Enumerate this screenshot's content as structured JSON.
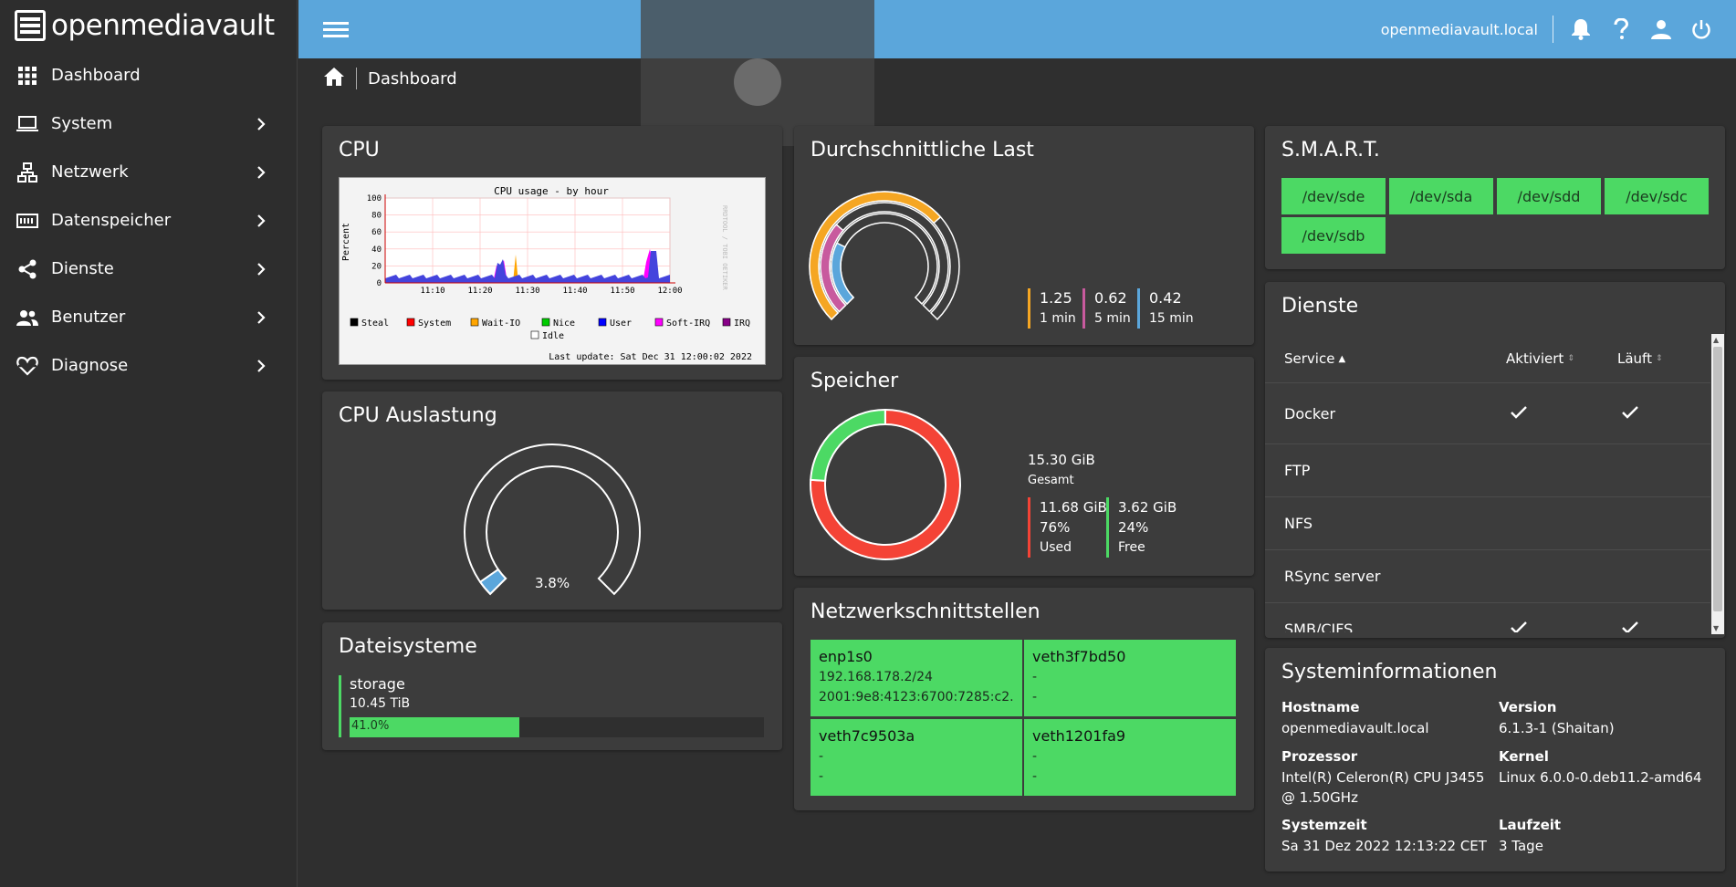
{
  "app": {
    "logo_text": "openmediavault"
  },
  "sidebar": {
    "items": [
      {
        "label": "Dashboard",
        "icon": "grid-icon",
        "chevron": false
      },
      {
        "label": "System",
        "icon": "laptop-icon",
        "chevron": true
      },
      {
        "label": "Netzwerk",
        "icon": "network-icon",
        "chevron": true
      },
      {
        "label": "Datenspeicher",
        "icon": "storage-icon",
        "chevron": true
      },
      {
        "label": "Dienste",
        "icon": "share-icon",
        "chevron": true
      },
      {
        "label": "Benutzer",
        "icon": "users-icon",
        "chevron": true
      },
      {
        "label": "Diagnose",
        "icon": "heartbeat-icon",
        "chevron": true
      }
    ]
  },
  "topbar": {
    "hostname": "openmediavault.local"
  },
  "breadcrumb": {
    "label": "Dashboard"
  },
  "cpu": {
    "title": "CPU",
    "graph": {
      "title": "CPU usage - by hour",
      "ylabel": "Percent",
      "yticks": [
        "100",
        "80",
        "60",
        "40",
        "20",
        "0"
      ],
      "xticks": [
        "11:10",
        "11:20",
        "11:30",
        "11:40",
        "11:50",
        "12:00"
      ],
      "legend": [
        "Steal",
        "System",
        "Wait-IO",
        "Nice",
        "User",
        "Soft-IRQ",
        "IRQ",
        "Idle"
      ],
      "legend_colors": [
        "#000000",
        "#ff0000",
        "#ffa500",
        "#00cc00",
        "#0000ff",
        "#ff00ff",
        "#880088",
        "#ffffff"
      ],
      "side_text": "RRDTOOL / TOBI OETIKER",
      "last_update": "Last update: Sat Dec 31 12:00:02 2022"
    }
  },
  "cpu_usage": {
    "title": "CPU Auslastung",
    "value_label": "3.8%",
    "value": 3.8
  },
  "filesystems": {
    "title": "Dateisysteme",
    "items": [
      {
        "name": "storage",
        "size": "10.45 TiB",
        "percent_label": "41.0%",
        "percent": 41.0
      }
    ]
  },
  "load": {
    "title": "Durchschnittliche Last",
    "values": [
      {
        "value": "1.25",
        "label": "1 min",
        "color": "#f5a623"
      },
      {
        "value": "0.62",
        "label": "5 min",
        "color": "#c85a9e"
      },
      {
        "value": "0.42",
        "label": "15 min",
        "color": "#5ba6db"
      }
    ]
  },
  "memory": {
    "title": "Speicher",
    "total": "15.30 GiB",
    "total_label": "Gesamt",
    "used": {
      "value": "11.68 GiB",
      "percent": "76%",
      "label": "Used",
      "color": "#f44336",
      "fraction": 0.76
    },
    "free": {
      "value": "3.62 GiB",
      "percent": "24%",
      "label": "Free",
      "color": "#4cd964",
      "fraction": 0.24
    }
  },
  "network": {
    "title": "Netzwerkschnittstellen",
    "interfaces": [
      {
        "name": "enp1s0",
        "line1": "192.168.178.2/24",
        "line2": "2001:9e8:4123:6700:7285:c2..."
      },
      {
        "name": "veth3f7bd50",
        "line1": "-",
        "line2": "-"
      },
      {
        "name": "veth7c9503a",
        "line1": "-",
        "line2": "-"
      },
      {
        "name": "veth1201fa9",
        "line1": "-",
        "line2": "-"
      }
    ]
  },
  "smart": {
    "title": "S.M.A.R.T.",
    "devices": [
      "/dev/sde",
      "/dev/sda",
      "/dev/sdd",
      "/dev/sdc",
      "/dev/sdb"
    ]
  },
  "services": {
    "title": "Dienste",
    "columns": {
      "service": "Service",
      "enabled": "Aktiviert",
      "running": "Läuft"
    },
    "rows": [
      {
        "name": "Docker",
        "enabled": true,
        "running": true
      },
      {
        "name": "FTP",
        "enabled": false,
        "running": false
      },
      {
        "name": "NFS",
        "enabled": false,
        "running": false
      },
      {
        "name": "RSync server",
        "enabled": false,
        "running": false
      },
      {
        "name": "SMB/CIFS",
        "enabled": true,
        "running": true
      }
    ]
  },
  "sysinfo": {
    "title": "Systeminformationen",
    "hostname_label": "Hostname",
    "hostname": "openmediavault.local",
    "version_label": "Version",
    "version": "6.1.3-1 (Shaitan)",
    "cpu_label": "Prozessor",
    "cpu_line1": "Intel(R) Celeron(R) CPU J3455",
    "cpu_line2": "@ 1.50GHz",
    "kernel_label": "Kernel",
    "kernel": "Linux 6.0.0-0.deb11.2-amd64",
    "time_label": "Systemzeit",
    "time": "Sa 31 Dez 2022 12:13:22 CET",
    "uptime_label": "Laufzeit",
    "uptime": "3 Tage"
  }
}
